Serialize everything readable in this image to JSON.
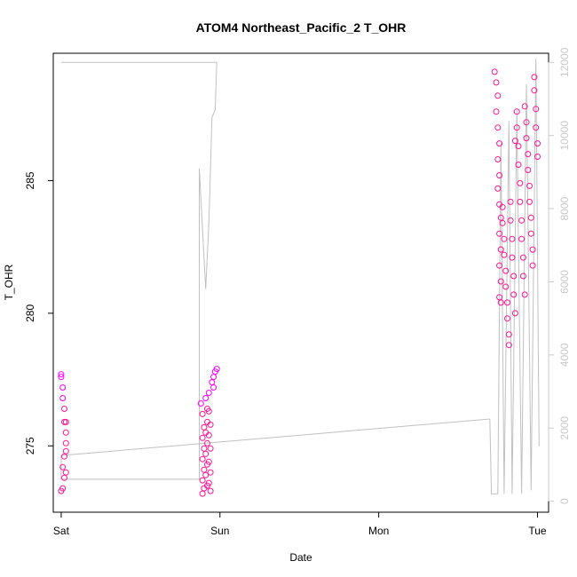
{
  "chart_data": {
    "type": "scatter",
    "title": "ATOM4 Northeast_Pacific_2 T_OHR",
    "xlabel": "Date",
    "ylabel": "T_OHR",
    "x_ticks": [
      "Sat",
      "Sun",
      "Mon",
      "Tue"
    ],
    "x_range_days": [
      -0.05,
      3.07
    ],
    "y_left": {
      "ticks": [
        275,
        280,
        285
      ],
      "range": [
        272.5,
        289.8
      ]
    },
    "y_right": {
      "ticks": [
        0,
        2000,
        4000,
        6000,
        8000,
        10000,
        12000
      ],
      "range": [
        -300,
        12250
      ]
    },
    "colors": {
      "points_primary": "#ff1493",
      "points_secondary": "#ff00ff",
      "line": "#c0c0c0",
      "right_axis": "#c8c8c8"
    },
    "series": [
      {
        "axis": "left",
        "style": "points",
        "color": "#ff1493",
        "points": [
          [
            0.0,
            277.7
          ],
          [
            0.0,
            277.6
          ],
          [
            0.01,
            277.2
          ],
          [
            0.01,
            276.8
          ],
          [
            0.02,
            276.4
          ],
          [
            0.02,
            275.9
          ],
          [
            0.03,
            275.5
          ],
          [
            0.03,
            275.1
          ],
          [
            0.02,
            274.6
          ],
          [
            0.01,
            274.2
          ],
          [
            0.02,
            273.8
          ],
          [
            0.01,
            273.4
          ],
          [
            0.0,
            273.3
          ],
          [
            0.03,
            274.0
          ],
          [
            0.03,
            275.9
          ],
          [
            0.03,
            274.8
          ],
          [
            0.88,
            276.6
          ],
          [
            0.89,
            276.2
          ],
          [
            0.9,
            275.7
          ],
          [
            0.89,
            275.3
          ],
          [
            0.9,
            274.9
          ],
          [
            0.89,
            274.5
          ],
          [
            0.9,
            274.1
          ],
          [
            0.89,
            273.7
          ],
          [
            0.9,
            273.4
          ],
          [
            0.89,
            273.2
          ],
          [
            0.91,
            276.8
          ],
          [
            0.92,
            276.4
          ],
          [
            0.92,
            275.9
          ],
          [
            0.91,
            275.5
          ],
          [
            0.92,
            275.1
          ],
          [
            0.91,
            274.7
          ],
          [
            0.92,
            274.3
          ],
          [
            0.91,
            273.9
          ],
          [
            0.92,
            273.5
          ],
          [
            0.93,
            277.0
          ],
          [
            0.93,
            276.3
          ],
          [
            0.94,
            275.8
          ],
          [
            0.93,
            275.4
          ],
          [
            0.94,
            274.9
          ],
          [
            0.93,
            274.4
          ],
          [
            0.94,
            274.0
          ],
          [
            0.93,
            273.6
          ],
          [
            0.94,
            273.3
          ],
          [
            0.95,
            277.4
          ],
          [
            0.96,
            277.6
          ],
          [
            0.96,
            277.2
          ],
          [
            0.97,
            277.8
          ],
          [
            0.98,
            277.9
          ],
          [
            2.73,
            289.1
          ],
          [
            2.74,
            288.7
          ],
          [
            2.75,
            288.2
          ],
          [
            2.74,
            287.6
          ],
          [
            2.75,
            287.0
          ],
          [
            2.76,
            286.4
          ],
          [
            2.75,
            285.8
          ],
          [
            2.76,
            285.2
          ],
          [
            2.75,
            284.7
          ],
          [
            2.76,
            284.1
          ],
          [
            2.77,
            283.6
          ],
          [
            2.76,
            283.0
          ],
          [
            2.77,
            282.4
          ],
          [
            2.76,
            281.8
          ],
          [
            2.77,
            281.2
          ],
          [
            2.76,
            280.6
          ],
          [
            2.77,
            280.4
          ],
          [
            2.78,
            284.0
          ],
          [
            2.78,
            283.4
          ],
          [
            2.79,
            282.8
          ],
          [
            2.79,
            282.2
          ],
          [
            2.8,
            281.6
          ],
          [
            2.8,
            281.0
          ],
          [
            2.81,
            280.4
          ],
          [
            2.81,
            279.8
          ],
          [
            2.82,
            279.2
          ],
          [
            2.82,
            278.8
          ],
          [
            2.83,
            284.2
          ],
          [
            2.83,
            283.5
          ],
          [
            2.84,
            282.8
          ],
          [
            2.84,
            282.1
          ],
          [
            2.85,
            281.4
          ],
          [
            2.85,
            280.7
          ],
          [
            2.86,
            280.0
          ],
          [
            2.86,
            286.5
          ],
          [
            2.87,
            287.6
          ],
          [
            2.87,
            287.0
          ],
          [
            2.88,
            286.3
          ],
          [
            2.88,
            285.6
          ],
          [
            2.89,
            284.9
          ],
          [
            2.89,
            284.2
          ],
          [
            2.9,
            283.5
          ],
          [
            2.9,
            282.8
          ],
          [
            2.91,
            282.1
          ],
          [
            2.91,
            281.4
          ],
          [
            2.92,
            280.7
          ],
          [
            2.92,
            287.8
          ],
          [
            2.93,
            287.2
          ],
          [
            2.93,
            286.6
          ],
          [
            2.94,
            286.0
          ],
          [
            2.94,
            285.4
          ],
          [
            2.95,
            284.8
          ],
          [
            2.95,
            284.2
          ],
          [
            2.96,
            283.6
          ],
          [
            2.96,
            283.0
          ],
          [
            2.97,
            282.4
          ],
          [
            2.97,
            281.8
          ],
          [
            2.98,
            288.9
          ],
          [
            2.98,
            288.4
          ],
          [
            2.99,
            287.7
          ],
          [
            2.99,
            287.0
          ],
          [
            3.0,
            286.4
          ],
          [
            3.0,
            285.9
          ]
        ]
      },
      {
        "axis": "right",
        "style": "line",
        "color": "#c0c0c0",
        "points": [
          [
            0.0,
            12000
          ],
          [
            0.98,
            12000
          ],
          [
            0.97,
            10700
          ],
          [
            0.95,
            10500
          ],
          [
            0.93,
            7600
          ],
          [
            0.91,
            5800
          ],
          [
            0.87,
            9100
          ],
          [
            0.87,
            600
          ],
          [
            0.0,
            600
          ],
          [
            0.0,
            1250
          ],
          [
            2.7,
            2250
          ],
          [
            2.71,
            200
          ],
          [
            2.75,
            200
          ],
          [
            2.77,
            9800
          ],
          [
            2.79,
            200
          ],
          [
            2.82,
            10400
          ],
          [
            2.84,
            200
          ],
          [
            2.87,
            10700
          ],
          [
            2.9,
            200
          ],
          [
            2.93,
            11400
          ],
          [
            2.96,
            300
          ],
          [
            2.99,
            12100
          ],
          [
            3.01,
            1500
          ]
        ]
      }
    ]
  }
}
